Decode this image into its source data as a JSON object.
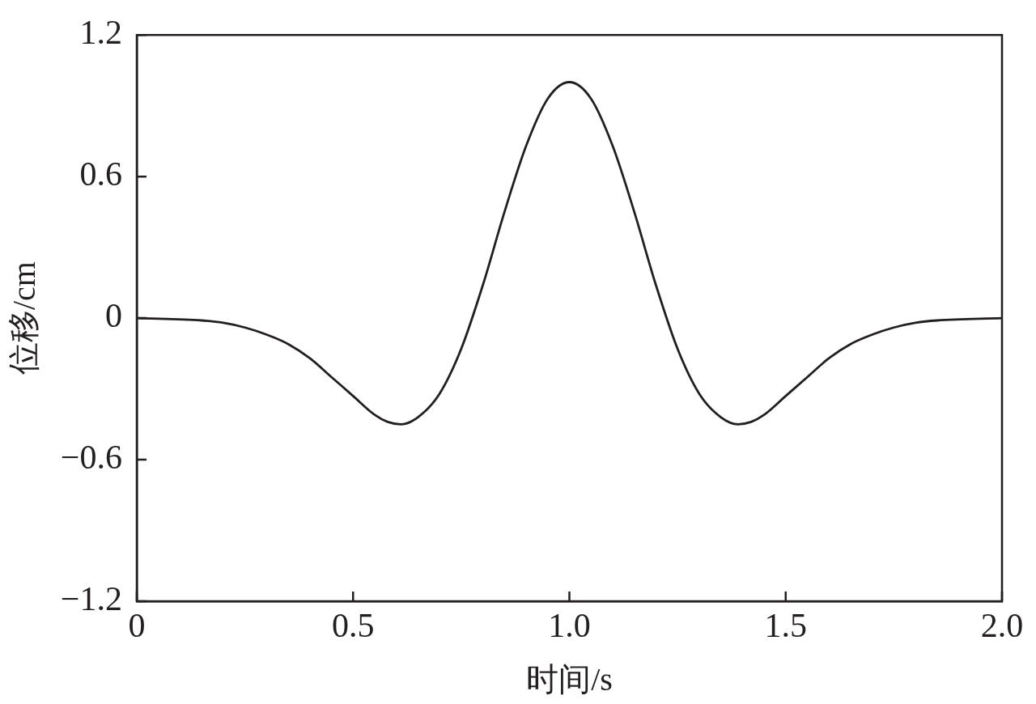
{
  "chart_data": {
    "type": "line",
    "xlabel": "时间/s",
    "ylabel": "位移/cm",
    "x": [
      0,
      0.15,
      0.2,
      0.25,
      0.3,
      0.35,
      0.4,
      0.45,
      0.5,
      0.55,
      0.58,
      0.61,
      0.65,
      0.7,
      0.75,
      0.8,
      0.85,
      0.9,
      0.95,
      1,
      1.05,
      1.1,
      1.15,
      1.2,
      1.25,
      1.3,
      1.35,
      1.39,
      1.42,
      1.45,
      1.5,
      1.55,
      1.6,
      1.65,
      1.7,
      1.75,
      1.8,
      1.85,
      2
    ],
    "series": [
      {
        "color": "#231f20",
        "values": [
          0,
          -0.01,
          -0.02,
          -0.04,
          -0.07,
          -0.11,
          -0.17,
          -0.25,
          -0.33,
          -0.41,
          -0.44,
          -0.45,
          -0.42,
          -0.32,
          -0.13,
          0.14,
          0.45,
          0.73,
          0.93,
          1,
          0.93,
          0.73,
          0.45,
          0.14,
          -0.13,
          -0.32,
          -0.42,
          -0.45,
          -0.44,
          -0.41,
          -0.33,
          -0.25,
          -0.17,
          -0.11,
          -0.07,
          -0.04,
          -0.02,
          -0.01,
          0
        ]
      }
    ],
    "xlim": [
      0,
      2
    ],
    "xticks": [
      0,
      0.5,
      {
        "value": 1,
        "label": "1.0"
      },
      1.5,
      {
        "value": 2,
        "label": "2.0"
      }
    ],
    "ylim": [
      -1.2,
      1.2
    ],
    "yticks": [
      {
        "value": -1.2,
        "label": "−1.2"
      },
      {
        "value": -0.6,
        "label": "−0.6"
      },
      0,
      0.6,
      1.2
    ],
    "line_style": "solid"
  }
}
